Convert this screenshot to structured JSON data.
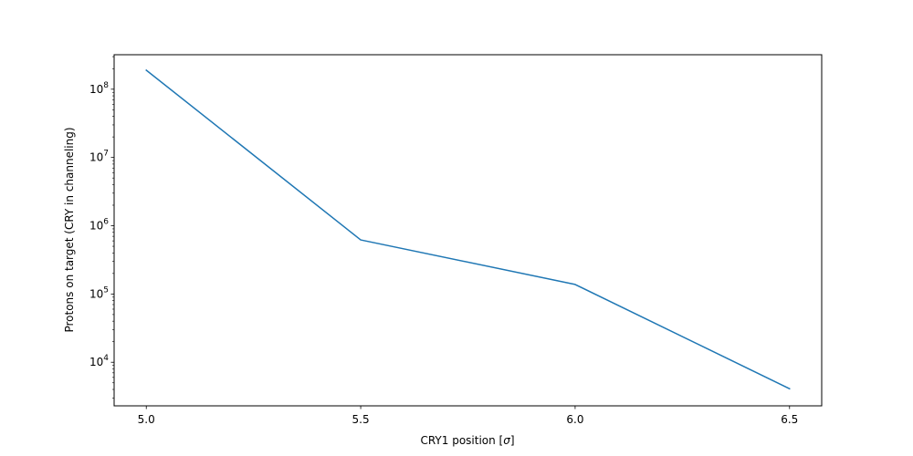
{
  "chart_data": {
    "type": "line",
    "xlabel": "CRY1 position [",
    "xlabel_symbol": "σ",
    "xlabel_suffix": "]",
    "ylabel": "Protons on target (CRY in channeling)",
    "yscale": "log",
    "xlim": [
      4.925,
      6.575
    ],
    "ylim": [
      2300,
      320000000
    ],
    "x_ticks": [
      {
        "value": 5.0,
        "label": "5.0"
      },
      {
        "value": 5.5,
        "label": "5.5"
      },
      {
        "value": 6.0,
        "label": "6.0"
      },
      {
        "value": 6.5,
        "label": "6.5"
      }
    ],
    "y_ticks": [
      {
        "value": 10000,
        "base": "10",
        "exp": "4"
      },
      {
        "value": 100000,
        "base": "10",
        "exp": "5"
      },
      {
        "value": 1000000,
        "base": "10",
        "exp": "6"
      },
      {
        "value": 10000000,
        "base": "10",
        "exp": "7"
      },
      {
        "value": 100000000,
        "base": "10",
        "exp": "8"
      }
    ],
    "series": [
      {
        "color": "#1f77b4",
        "x": [
          5.0,
          5.5,
          6.0,
          6.5
        ],
        "y": [
          190000000,
          620000,
          138000,
          4100
        ]
      }
    ]
  }
}
